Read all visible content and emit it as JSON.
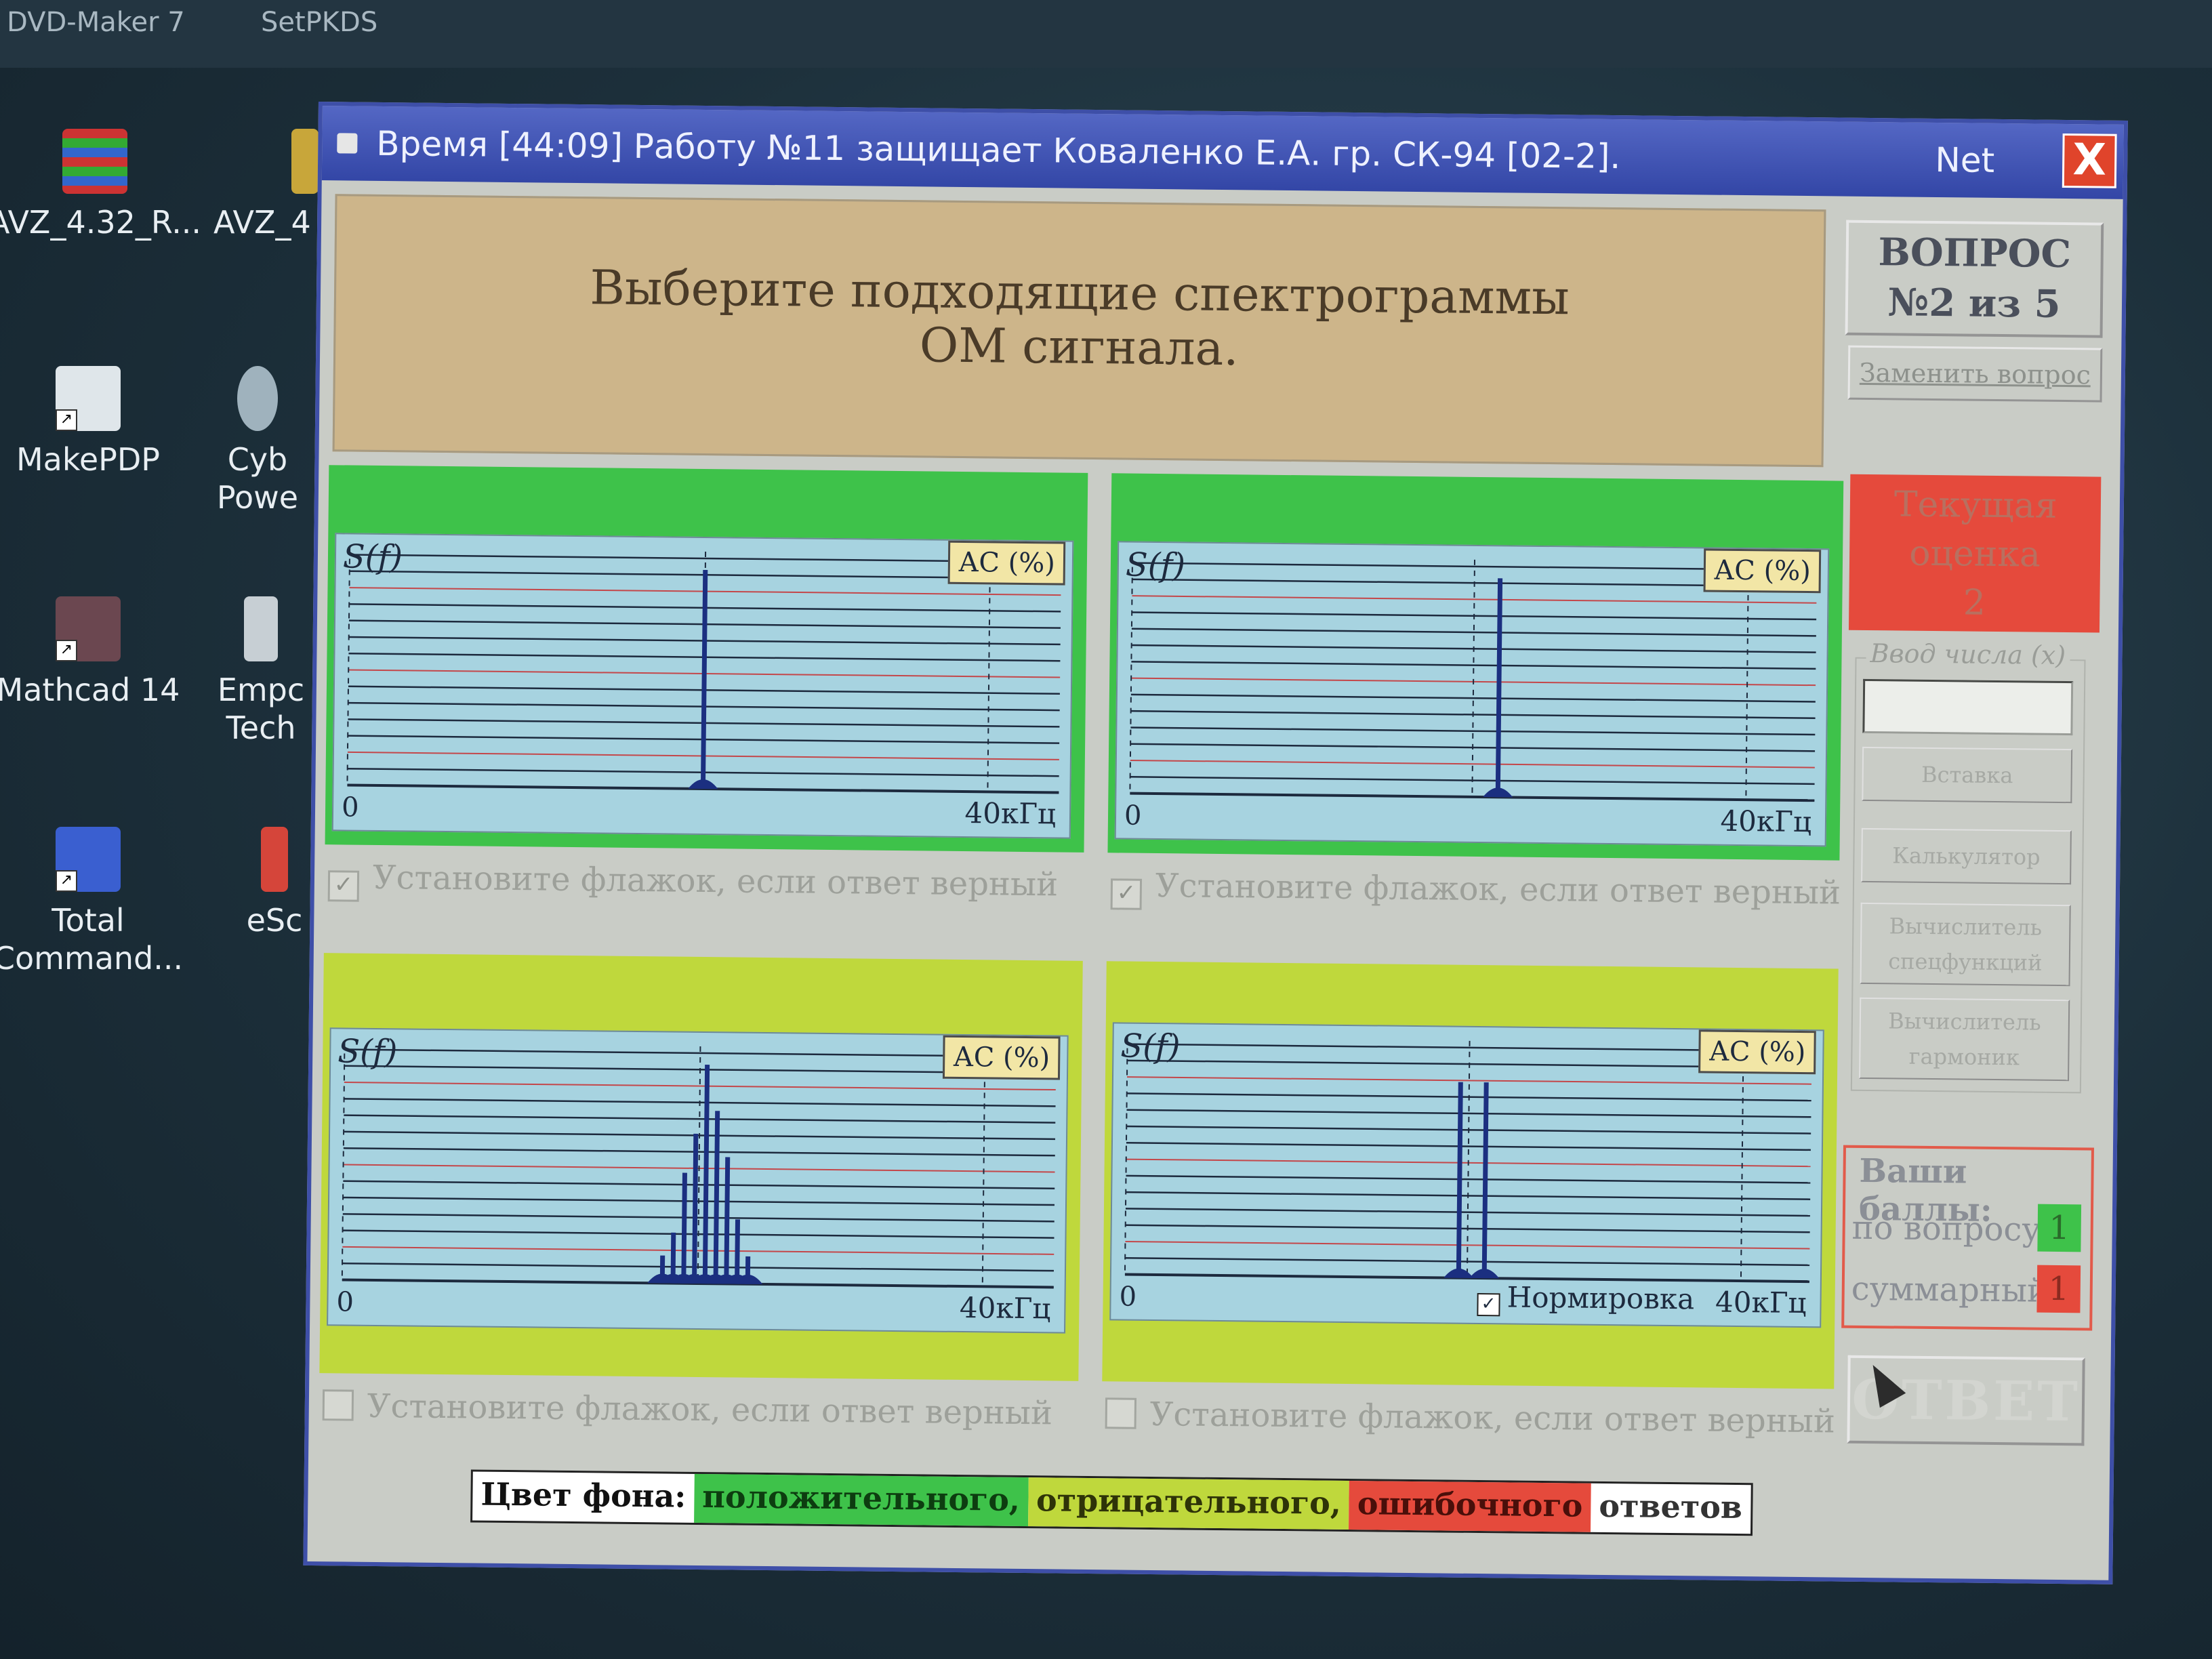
{
  "desktop": {
    "top_labels": [
      "DVD-Maker 7",
      "SetPKDS"
    ],
    "icons": [
      {
        "label": "AVZ_4.32_R...",
        "icon": "archive-icon"
      },
      {
        "label": "AVZ_4",
        "icon": "archive-icon"
      },
      {
        "label": "MakePDP",
        "icon": "app-icon"
      },
      {
        "label": "Cyb Powe",
        "icon": "disc-icon"
      },
      {
        "label": "Mathcad 14",
        "icon": "mathcad-icon"
      },
      {
        "label": "Empc Tech",
        "icon": "app-icon"
      },
      {
        "label": "Total Command...",
        "icon": "floppy-icon"
      },
      {
        "label": "eSc",
        "icon": "app-icon"
      }
    ]
  },
  "window": {
    "title": "Время [44:09] Работу №11 защищает Коваленко Е.А.  гр. СК-94 [02-2].",
    "net": "Net",
    "close": "X"
  },
  "question": {
    "line1": "Выберите подходящие спектрограммы",
    "line2": "ОМ сигнала."
  },
  "right_panel": {
    "question_number": "ВОПРОС №2 из 5",
    "replace_button": "Заменить вопрос",
    "grade_label": "Текущая оценка",
    "grade_value": "2",
    "input_legend": "Ввод числа (x)",
    "buttons": [
      "Вставка",
      "Калькулятор",
      "Вычислитель спецфункций",
      "Вычислитель гармоник"
    ],
    "scores_title": "Ваши баллы:",
    "score_question_label": "по вопросу -",
    "score_question_value": "1",
    "score_total_label": "суммарный -",
    "score_total_value": "1",
    "answer_button": "ОТВЕТ"
  },
  "plots": {
    "y_label": "S(f)",
    "ac_label": "АС (%)",
    "x_zero": "0",
    "x_max": "40кГц",
    "normalize_label": "Нормировка",
    "checkbox_label": "Установите флажок, если ответ верный"
  },
  "legend": {
    "prefix": "Цвет фона:",
    "positive": "положительного,",
    "negative": "отрицательного,",
    "error": "ошибочного",
    "suffix": "ответов"
  },
  "colors": {
    "positive_bg": "#3ec24a",
    "negative_bg": "#bfd83c",
    "error_bg": "#e54a3c"
  },
  "chart_data": [
    {
      "type": "bar",
      "panel": "top-left",
      "x_range_khz": [
        0,
        40
      ],
      "bars": [
        {
          "x": 20,
          "y": 0.95
        }
      ]
    },
    {
      "type": "bar",
      "panel": "top-right",
      "x_range_khz": [
        0,
        40
      ],
      "bars": [
        {
          "x": 21.5,
          "y": 0.95
        }
      ]
    },
    {
      "type": "bar",
      "panel": "bottom-left",
      "x_range_khz": [
        0,
        40
      ],
      "bars": [
        {
          "x": 18.0,
          "y": 0.12
        },
        {
          "x": 18.6,
          "y": 0.22
        },
        {
          "x": 19.2,
          "y": 0.48
        },
        {
          "x": 19.8,
          "y": 0.65
        },
        {
          "x": 20.4,
          "y": 0.95
        },
        {
          "x": 21.0,
          "y": 0.75
        },
        {
          "x": 21.6,
          "y": 0.55
        },
        {
          "x": 22.2,
          "y": 0.28
        },
        {
          "x": 22.8,
          "y": 0.12
        }
      ]
    },
    {
      "type": "bar",
      "panel": "bottom-right",
      "x_range_khz": [
        0,
        40
      ],
      "bars": [
        {
          "x": 19.5,
          "y": 0.85
        },
        {
          "x": 21.0,
          "y": 0.85
        }
      ]
    }
  ]
}
